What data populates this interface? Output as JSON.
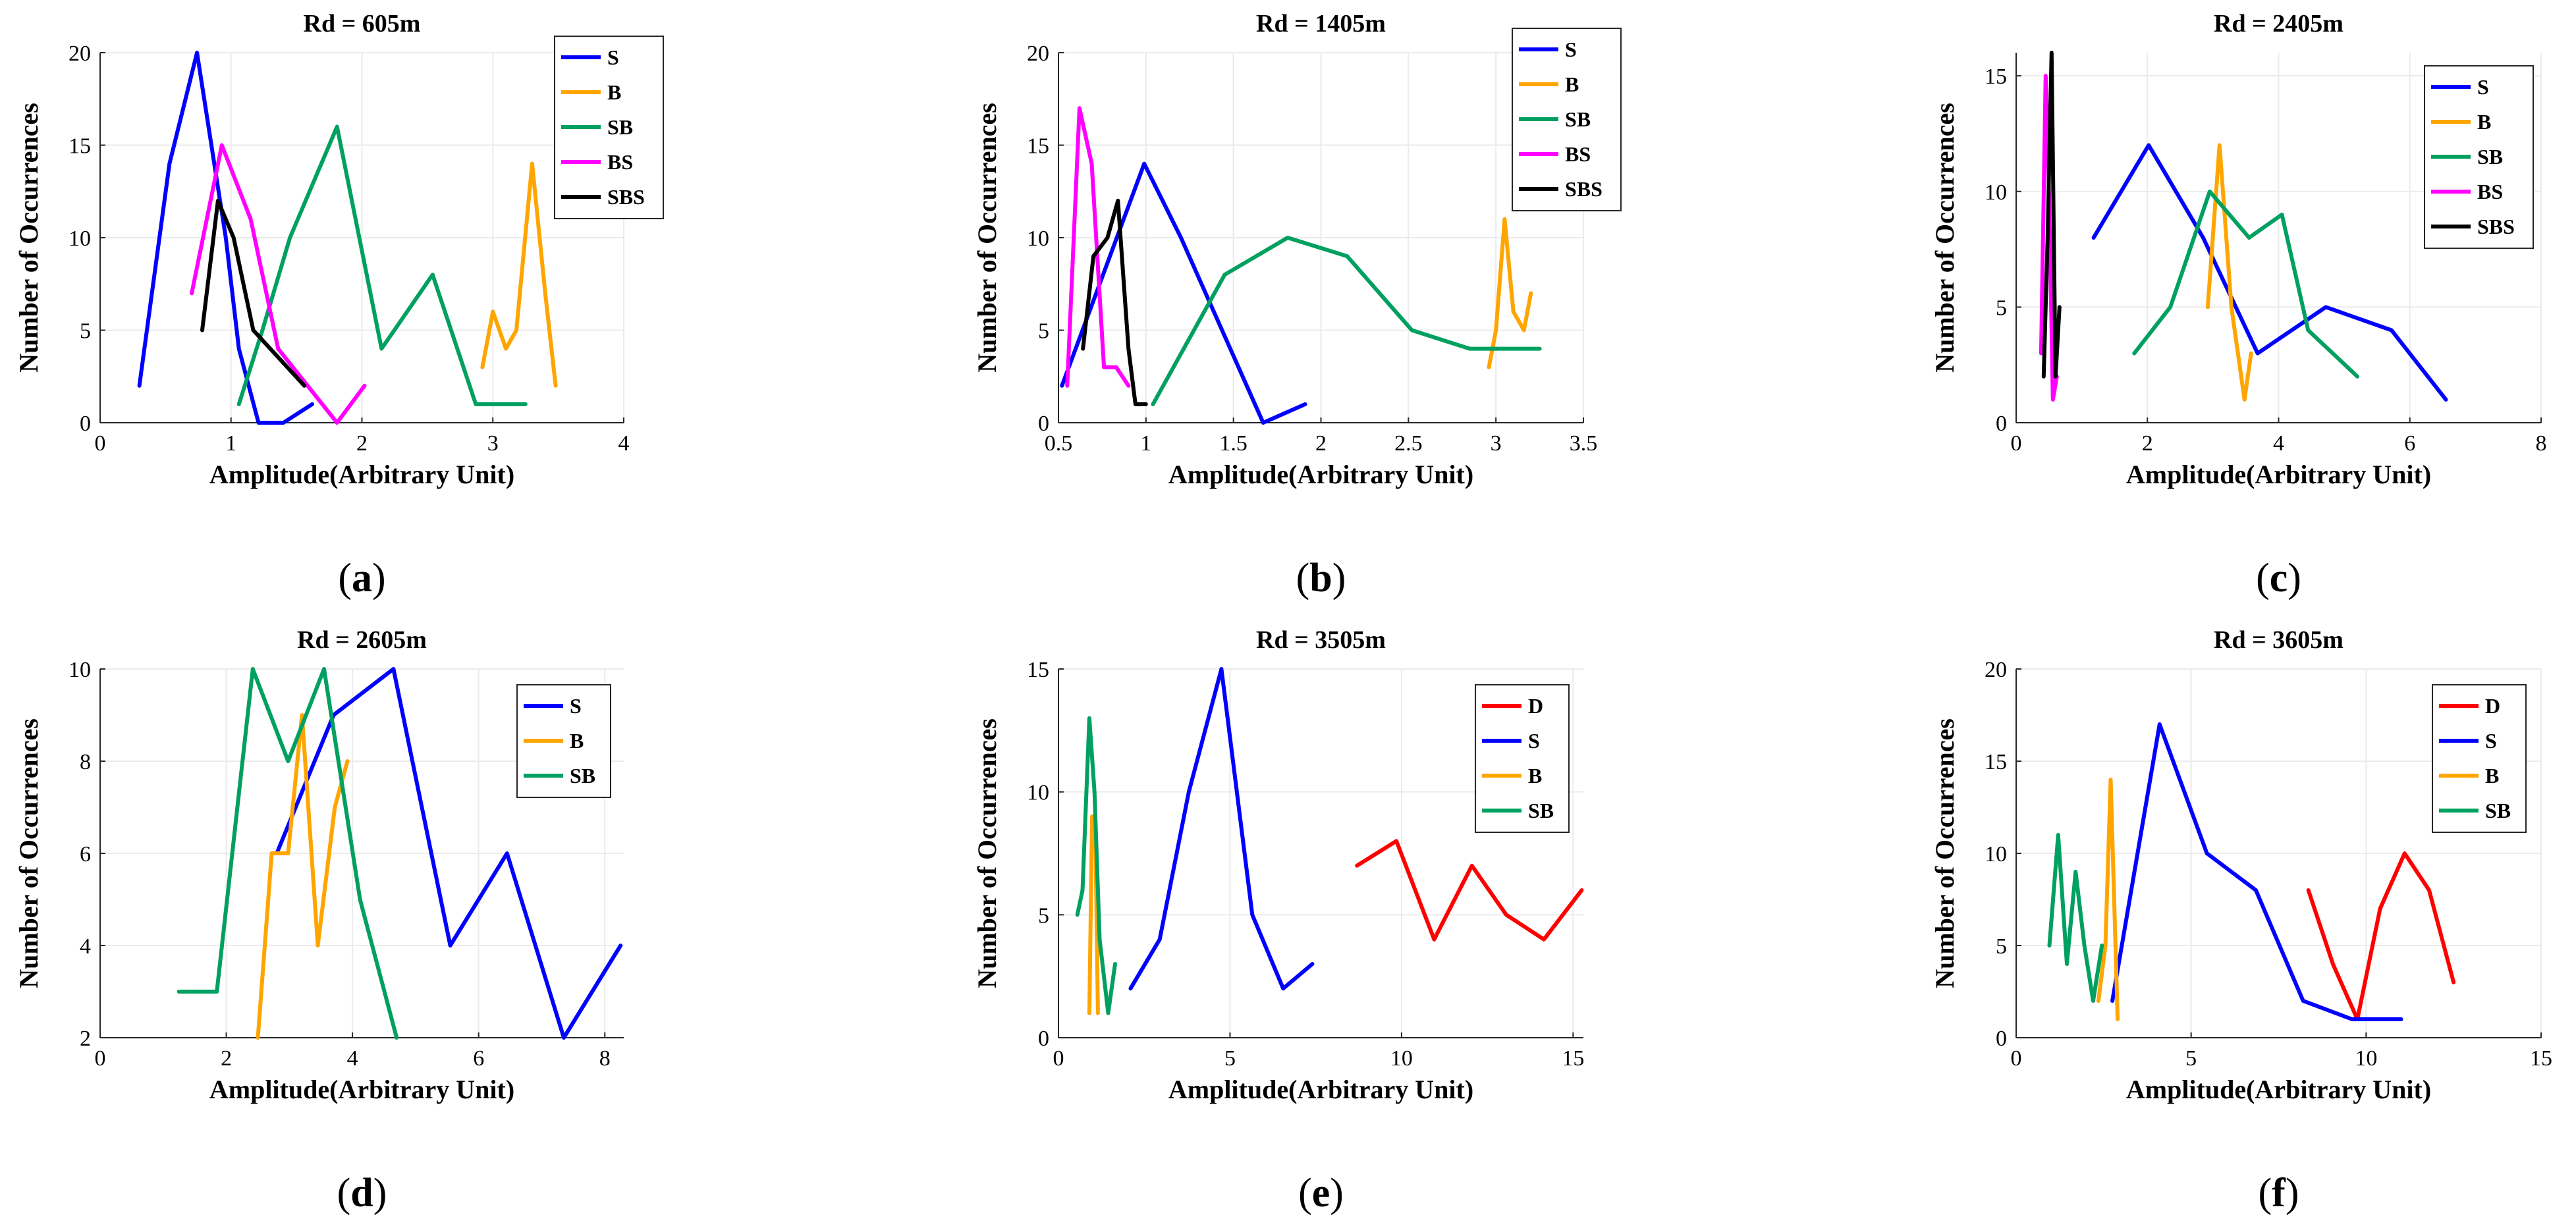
{
  "figure": {
    "panels": [
      "a",
      "b",
      "c",
      "d",
      "e",
      "f"
    ]
  },
  "chart_data": [
    {
      "panel_label": "a",
      "type": "line",
      "title": "Rd = 605m",
      "xlabel": "Amplitude(Arbitrary Unit)",
      "ylabel": "Number of Occurrences",
      "xlim": [
        0,
        4
      ],
      "ylim": [
        0,
        20
      ],
      "xticks": [
        "0",
        "1",
        "2",
        "3",
        "4"
      ],
      "yticks": [
        "0",
        "5",
        "10",
        "15",
        "20"
      ],
      "grid": true,
      "legend_position": "top-right",
      "series": [
        {
          "name": "S",
          "color": "#0000ff",
          "x": [
            0.3,
            0.53,
            0.74,
            0.96,
            1.06,
            1.21,
            1.4,
            1.62
          ],
          "y": [
            2,
            14,
            20,
            10,
            4,
            0,
            0,
            1
          ]
        },
        {
          "name": "B",
          "color": "#ffa500",
          "x": [
            2.92,
            3.0,
            3.1,
            3.18,
            3.3,
            3.4,
            3.48
          ],
          "y": [
            3,
            6,
            4,
            5,
            14,
            7,
            2
          ]
        },
        {
          "name": "SB",
          "color": "#00a060",
          "x": [
            1.06,
            1.24,
            1.45,
            1.81,
            2.15,
            2.54,
            2.87,
            3.25
          ],
          "y": [
            1,
            5,
            10,
            16,
            4,
            8,
            1,
            1
          ]
        },
        {
          "name": "BS",
          "color": "#ff00ff",
          "x": [
            0.7,
            0.93,
            1.15,
            1.36,
            1.81,
            2.02
          ],
          "y": [
            7,
            15,
            11,
            4,
            0,
            2
          ]
        },
        {
          "name": "SBS",
          "color": "#000000",
          "x": [
            0.78,
            0.9,
            1.02,
            1.17,
            1.56
          ],
          "y": [
            5,
            12,
            10,
            5,
            2
          ]
        }
      ]
    },
    {
      "panel_label": "b",
      "type": "line",
      "title": "Rd = 1405m",
      "xlabel": "Amplitude(Arbitrary Unit)",
      "ylabel": "Number of Occurrences",
      "xlim": [
        0.5,
        3.5
      ],
      "ylim": [
        0,
        20
      ],
      "xticks": [
        "0.5",
        "1",
        "1.5",
        "2",
        "2.5",
        "3",
        "3.5"
      ],
      "yticks": [
        "0",
        "5",
        "10",
        "15",
        "20"
      ],
      "grid": true,
      "legend_position": "top-right",
      "series": [
        {
          "name": "S",
          "color": "#0000ff",
          "x": [
            0.52,
            0.99,
            1.2,
            1.67,
            1.91
          ],
          "y": [
            2,
            14,
            10,
            0,
            1
          ]
        },
        {
          "name": "B",
          "color": "#ffa500",
          "x": [
            2.96,
            3.0,
            3.05,
            3.1,
            3.16,
            3.2
          ],
          "y": [
            3,
            5,
            11,
            6,
            5,
            7
          ]
        },
        {
          "name": "SB",
          "color": "#00a060",
          "x": [
            1.04,
            1.45,
            1.81,
            2.15,
            2.52,
            2.85,
            3.25
          ],
          "y": [
            1,
            8,
            10,
            9,
            5,
            4,
            4
          ]
        },
        {
          "name": "BS",
          "color": "#ff00ff",
          "x": [
            0.55,
            0.62,
            0.69,
            0.76,
            0.83,
            0.9
          ],
          "y": [
            2,
            17,
            14,
            3,
            3,
            2
          ]
        },
        {
          "name": "SBS",
          "color": "#000000",
          "x": [
            0.64,
            0.7,
            0.78,
            0.84,
            0.9,
            0.94,
            1.0
          ],
          "y": [
            4,
            9,
            10,
            12,
            4,
            1,
            1
          ]
        }
      ]
    },
    {
      "panel_label": "c",
      "type": "line",
      "title": "Rd = 2405m",
      "xlabel": "Amplitude(Arbitrary Unit)",
      "ylabel": "Number of Occurrences",
      "xlim": [
        0,
        8
      ],
      "ylim": [
        0,
        16
      ],
      "xticks": [
        "0",
        "2",
        "4",
        "6",
        "8"
      ],
      "yticks": [
        "0",
        "5",
        "10",
        "15"
      ],
      "grid": true,
      "legend_position": "top-right",
      "series": [
        {
          "name": "S",
          "color": "#0000ff",
          "x": [
            1.18,
            2.02,
            2.85,
            3.68,
            4.72,
            5.72,
            6.55
          ],
          "y": [
            8,
            12,
            8,
            3,
            5,
            4,
            1
          ]
        },
        {
          "name": "B",
          "color": "#ffa500",
          "x": [
            2.92,
            3.1,
            3.28,
            3.48,
            3.58
          ],
          "y": [
            5,
            12,
            5,
            1,
            3
          ]
        },
        {
          "name": "SB",
          "color": "#00a060",
          "x": [
            1.8,
            2.35,
            2.95,
            3.55,
            4.05,
            4.45,
            5.2
          ],
          "y": [
            3,
            5,
            10,
            8,
            9,
            4,
            2
          ]
        },
        {
          "name": "BS",
          "color": "#ff00ff",
          "x": [
            0.38,
            0.45,
            0.5,
            0.56,
            0.62
          ],
          "y": [
            3,
            15,
            10,
            1,
            2
          ]
        },
        {
          "name": "SBS",
          "color": "#000000",
          "x": [
            0.42,
            0.48,
            0.54,
            0.6,
            0.66
          ],
          "y": [
            2,
            8,
            16,
            2,
            5
          ]
        }
      ]
    },
    {
      "panel_label": "d",
      "type": "line",
      "title": "Rd = 2605m",
      "xlabel": "Amplitude(Arbitrary Unit)",
      "ylabel": "Number of Occurrences",
      "xlim": [
        0,
        8.3
      ],
      "ylim": [
        2,
        10
      ],
      "xticks": [
        "0",
        "2",
        "4",
        "6",
        "8"
      ],
      "xtick_values": [
        0,
        2,
        4,
        6,
        8
      ],
      "yticks": [
        "2",
        "4",
        "6",
        "8",
        "10"
      ],
      "grid": true,
      "legend_position": "top-right",
      "series": [
        {
          "name": "S",
          "color": "#0000ff",
          "x": [
            2.8,
            3.7,
            4.65,
            5.55,
            6.45,
            7.35,
            8.25
          ],
          "y": [
            6,
            9,
            10,
            4,
            6,
            2,
            4
          ]
        },
        {
          "name": "B",
          "color": "#ffa500",
          "x": [
            2.5,
            2.72,
            2.98,
            3.2,
            3.45,
            3.72,
            3.92
          ],
          "y": [
            2,
            6,
            6,
            9,
            4,
            7,
            8
          ]
        },
        {
          "name": "SB",
          "color": "#00a060",
          "x": [
            1.25,
            1.85,
            2.42,
            2.98,
            3.55,
            4.12,
            4.7
          ],
          "y": [
            3,
            3,
            10,
            8,
            10,
            5,
            2
          ]
        }
      ]
    },
    {
      "panel_label": "e",
      "type": "line",
      "title": "Rd = 3505m",
      "xlabel": "Amplitude(Arbitrary Unit)",
      "ylabel": "Number of Occurrences",
      "xlim": [
        0,
        15.3
      ],
      "ylim": [
        0,
        15
      ],
      "xticks": [
        "0",
        "5",
        "10",
        "15"
      ],
      "xtick_values": [
        0,
        5,
        10,
        15
      ],
      "yticks": [
        "0",
        "5",
        "10",
        "15"
      ],
      "grid": true,
      "legend_position": "top-right",
      "series": [
        {
          "name": "D",
          "color": "#ff0000",
          "x": [
            8.7,
            9.85,
            10.95,
            12.05,
            13.05,
            14.15,
            15.25
          ],
          "y": [
            7,
            8,
            4,
            7,
            5,
            4,
            6
          ]
        },
        {
          "name": "S",
          "color": "#0000ff",
          "x": [
            2.1,
            2.95,
            3.8,
            4.75,
            5.65,
            6.55,
            7.4
          ],
          "y": [
            2,
            4,
            10,
            15,
            5,
            2,
            3
          ]
        },
        {
          "name": "B",
          "color": "#ffa500",
          "x": [
            0.9,
            0.98,
            1.07,
            1.15
          ],
          "y": [
            1,
            9,
            9,
            1
          ]
        },
        {
          "name": "SB",
          "color": "#00a060",
          "x": [
            0.55,
            0.7,
            0.9,
            1.05,
            1.2,
            1.45,
            1.65
          ],
          "y": [
            5,
            6,
            13,
            10,
            4,
            1,
            3
          ]
        }
      ]
    },
    {
      "panel_label": "f",
      "type": "line",
      "title": "Rd = 3605m",
      "xlabel": "Amplitude(Arbitrary Unit)",
      "ylabel": "Number of Occurrences",
      "xlim": [
        0,
        15
      ],
      "ylim": [
        0,
        20
      ],
      "xticks": [
        "0",
        "5",
        "10",
        "15"
      ],
      "yticks": [
        "0",
        "5",
        "10",
        "15",
        "20"
      ],
      "grid": true,
      "legend_position": "top-right",
      "series": [
        {
          "name": "D",
          "color": "#ff0000",
          "x": [
            8.35,
            9.05,
            9.75,
            10.4,
            11.1,
            11.8,
            12.5
          ],
          "y": [
            8,
            4,
            1,
            7,
            10,
            8,
            3
          ]
        },
        {
          "name": "S",
          "color": "#0000ff",
          "x": [
            2.75,
            4.1,
            5.45,
            6.85,
            8.2,
            9.6,
            11.0
          ],
          "y": [
            2,
            17,
            10,
            8,
            2,
            1,
            1
          ]
        },
        {
          "name": "B",
          "color": "#ffa500",
          "x": [
            2.35,
            2.55,
            2.7,
            2.9
          ],
          "y": [
            2,
            5,
            14,
            1
          ]
        },
        {
          "name": "SB",
          "color": "#00a060",
          "x": [
            0.95,
            1.2,
            1.45,
            1.7,
            1.95,
            2.2,
            2.45
          ],
          "y": [
            5,
            11,
            4,
            9,
            5,
            2,
            5
          ]
        }
      ]
    }
  ]
}
